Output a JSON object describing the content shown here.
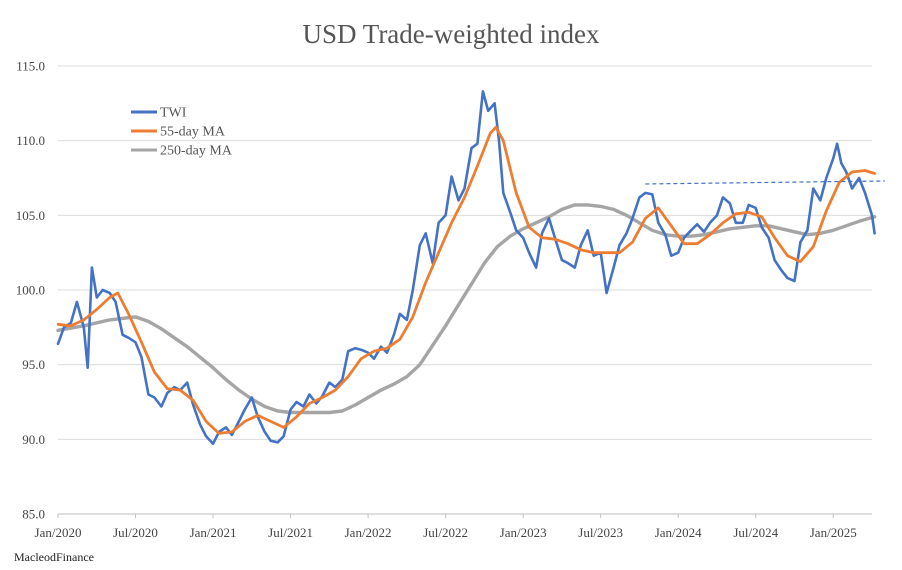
{
  "chart_data": {
    "type": "line",
    "title": "USD Trade-weighted index",
    "source_label": "MacleodFinance",
    "xlabel": "",
    "ylabel": "",
    "ylim": [
      85,
      115
    ],
    "y_ticks": [
      85.0,
      90.0,
      95.0,
      100.0,
      105.0,
      110.0,
      115.0
    ],
    "y_tick_labels": [
      "85.0",
      "90.0",
      "95.0",
      "100.0",
      "105.0",
      "110.0",
      "115.0"
    ],
    "x_range": [
      "2020-01",
      "2025-04"
    ],
    "x_ticks": [
      "2020-01",
      "2020-07",
      "2021-01",
      "2021-07",
      "2022-01",
      "2022-07",
      "2023-01",
      "2023-07",
      "2024-01",
      "2024-07",
      "2025-01"
    ],
    "x_tick_labels": [
      "Jan/2020",
      "Jul/2020",
      "Jan/2021",
      "Jul/2021",
      "Jan/2022",
      "Jul/2022",
      "Jan/2023",
      "Jul/2023",
      "Jan/2024",
      "Jul/2024",
      "Jan/2025"
    ],
    "grid": "horizontal",
    "legend_position": "top-left",
    "series": [
      {
        "name": "TWI",
        "color": "#4472c4",
        "points": [
          [
            "2020-01-01",
            96.4
          ],
          [
            "2020-01-15",
            97.5
          ],
          [
            "2020-02-01",
            97.8
          ],
          [
            "2020-02-15",
            99.2
          ],
          [
            "2020-03-01",
            97.5
          ],
          [
            "2020-03-10",
            94.8
          ],
          [
            "2020-03-20",
            101.5
          ],
          [
            "2020-04-01",
            99.5
          ],
          [
            "2020-04-15",
            100.0
          ],
          [
            "2020-05-01",
            99.8
          ],
          [
            "2020-05-15",
            99.2
          ],
          [
            "2020-06-01",
            97.0
          ],
          [
            "2020-06-15",
            96.8
          ],
          [
            "2020-07-01",
            96.5
          ],
          [
            "2020-07-15",
            95.5
          ],
          [
            "2020-08-01",
            93.0
          ],
          [
            "2020-08-15",
            92.8
          ],
          [
            "2020-09-01",
            92.2
          ],
          [
            "2020-09-15",
            93.1
          ],
          [
            "2020-10-01",
            93.5
          ],
          [
            "2020-10-15",
            93.3
          ],
          [
            "2020-11-01",
            93.8
          ],
          [
            "2020-11-15",
            92.3
          ],
          [
            "2020-12-01",
            91.0
          ],
          [
            "2020-12-15",
            90.2
          ],
          [
            "2021-01-01",
            89.7
          ],
          [
            "2021-01-15",
            90.5
          ],
          [
            "2021-02-01",
            90.8
          ],
          [
            "2021-02-15",
            90.3
          ],
          [
            "2021-03-01",
            91.2
          ],
          [
            "2021-03-15",
            92.0
          ],
          [
            "2021-04-01",
            92.8
          ],
          [
            "2021-04-15",
            91.5
          ],
          [
            "2021-05-01",
            90.5
          ],
          [
            "2021-05-15",
            89.9
          ],
          [
            "2021-06-01",
            89.8
          ],
          [
            "2021-06-15",
            90.2
          ],
          [
            "2021-07-01",
            92.0
          ],
          [
            "2021-07-15",
            92.5
          ],
          [
            "2021-08-01",
            92.2
          ],
          [
            "2021-08-15",
            93.0
          ],
          [
            "2021-09-01",
            92.4
          ],
          [
            "2021-09-15",
            92.9
          ],
          [
            "2021-10-01",
            93.8
          ],
          [
            "2021-10-15",
            93.5
          ],
          [
            "2021-11-01",
            94.0
          ],
          [
            "2021-11-15",
            95.9
          ],
          [
            "2021-12-01",
            96.1
          ],
          [
            "2021-12-15",
            96.0
          ],
          [
            "2022-01-01",
            95.8
          ],
          [
            "2022-01-15",
            95.4
          ],
          [
            "2022-02-01",
            96.2
          ],
          [
            "2022-02-15",
            95.8
          ],
          [
            "2022-03-01",
            97.0
          ],
          [
            "2022-03-15",
            98.4
          ],
          [
            "2022-04-01",
            98.0
          ],
          [
            "2022-04-15",
            100.0
          ],
          [
            "2022-05-01",
            103.0
          ],
          [
            "2022-05-15",
            103.8
          ],
          [
            "2022-06-01",
            101.8
          ],
          [
            "2022-06-15",
            104.5
          ],
          [
            "2022-07-01",
            105.0
          ],
          [
            "2022-07-15",
            107.6
          ],
          [
            "2022-08-01",
            106.0
          ],
          [
            "2022-08-15",
            106.8
          ],
          [
            "2022-09-01",
            109.5
          ],
          [
            "2022-09-15",
            109.8
          ],
          [
            "2022-09-28",
            113.3
          ],
          [
            "2022-10-10",
            112.0
          ],
          [
            "2022-10-25",
            112.5
          ],
          [
            "2022-11-05",
            110.0
          ],
          [
            "2022-11-15",
            106.5
          ],
          [
            "2022-12-01",
            105.2
          ],
          [
            "2022-12-15",
            104.0
          ],
          [
            "2023-01-01",
            103.5
          ],
          [
            "2023-01-15",
            102.5
          ],
          [
            "2023-02-01",
            101.5
          ],
          [
            "2023-02-15",
            103.8
          ],
          [
            "2023-03-01",
            104.8
          ],
          [
            "2023-03-15",
            103.5
          ],
          [
            "2023-04-01",
            102.0
          ],
          [
            "2023-04-15",
            101.8
          ],
          [
            "2023-05-01",
            101.5
          ],
          [
            "2023-05-15",
            103.0
          ],
          [
            "2023-06-01",
            104.0
          ],
          [
            "2023-06-15",
            102.3
          ],
          [
            "2023-07-01",
            102.5
          ],
          [
            "2023-07-15",
            99.8
          ],
          [
            "2023-08-01",
            101.5
          ],
          [
            "2023-08-15",
            103.0
          ],
          [
            "2023-09-01",
            103.8
          ],
          [
            "2023-09-15",
            104.8
          ],
          [
            "2023-10-01",
            106.2
          ],
          [
            "2023-10-15",
            106.5
          ],
          [
            "2023-11-01",
            106.4
          ],
          [
            "2023-11-15",
            104.5
          ],
          [
            "2023-12-01",
            103.7
          ],
          [
            "2023-12-15",
            102.3
          ],
          [
            "2024-01-01",
            102.5
          ],
          [
            "2024-01-15",
            103.5
          ],
          [
            "2024-02-01",
            104.0
          ],
          [
            "2024-02-15",
            104.4
          ],
          [
            "2024-03-01",
            103.9
          ],
          [
            "2024-03-15",
            104.5
          ],
          [
            "2024-04-01",
            105.0
          ],
          [
            "2024-04-15",
            106.2
          ],
          [
            "2024-05-01",
            105.8
          ],
          [
            "2024-05-15",
            104.5
          ],
          [
            "2024-06-01",
            104.5
          ],
          [
            "2024-06-15",
            105.7
          ],
          [
            "2024-07-01",
            105.5
          ],
          [
            "2024-07-15",
            104.2
          ],
          [
            "2024-08-01",
            103.5
          ],
          [
            "2024-08-15",
            102.0
          ],
          [
            "2024-09-01",
            101.3
          ],
          [
            "2024-09-15",
            100.8
          ],
          [
            "2024-10-01",
            100.6
          ],
          [
            "2024-10-15",
            103.2
          ],
          [
            "2024-11-01",
            104.0
          ],
          [
            "2024-11-15",
            106.8
          ],
          [
            "2024-12-01",
            106.0
          ],
          [
            "2024-12-15",
            107.5
          ],
          [
            "2025-01-01",
            108.8
          ],
          [
            "2025-01-10",
            109.8
          ],
          [
            "2025-01-20",
            108.5
          ],
          [
            "2025-02-01",
            107.9
          ],
          [
            "2025-02-15",
            106.8
          ],
          [
            "2025-03-01",
            107.5
          ],
          [
            "2025-03-15",
            106.5
          ],
          [
            "2025-04-01",
            105.0
          ],
          [
            "2025-04-07",
            103.8
          ]
        ]
      },
      {
        "name": "55-day MA",
        "color": "#ed7d31",
        "points": [
          [
            "2020-01-01",
            97.7
          ],
          [
            "2020-02-01",
            97.6
          ],
          [
            "2020-03-01",
            98.0
          ],
          [
            "2020-04-01",
            98.7
          ],
          [
            "2020-05-01",
            99.5
          ],
          [
            "2020-05-20",
            99.8
          ],
          [
            "2020-06-15",
            98.4
          ],
          [
            "2020-07-15",
            96.5
          ],
          [
            "2020-08-15",
            94.5
          ],
          [
            "2020-09-15",
            93.4
          ],
          [
            "2020-10-15",
            93.3
          ],
          [
            "2020-11-15",
            92.6
          ],
          [
            "2020-12-15",
            91.2
          ],
          [
            "2021-01-15",
            90.4
          ],
          [
            "2021-02-15",
            90.5
          ],
          [
            "2021-03-15",
            91.2
          ],
          [
            "2021-04-15",
            91.6
          ],
          [
            "2021-05-15",
            91.2
          ],
          [
            "2021-06-15",
            90.8
          ],
          [
            "2021-07-15",
            91.5
          ],
          [
            "2021-08-15",
            92.4
          ],
          [
            "2021-09-15",
            92.8
          ],
          [
            "2021-10-15",
            93.3
          ],
          [
            "2021-11-15",
            94.2
          ],
          [
            "2021-12-15",
            95.4
          ],
          [
            "2022-01-15",
            95.9
          ],
          [
            "2022-02-15",
            96.1
          ],
          [
            "2022-03-15",
            96.7
          ],
          [
            "2022-04-15",
            98.2
          ],
          [
            "2022-05-15",
            100.5
          ],
          [
            "2022-06-15",
            102.5
          ],
          [
            "2022-07-15",
            104.5
          ],
          [
            "2022-08-15",
            106.2
          ],
          [
            "2022-09-15",
            108.3
          ],
          [
            "2022-10-15",
            110.5
          ],
          [
            "2022-10-28",
            110.9
          ],
          [
            "2022-11-15",
            110.0
          ],
          [
            "2022-12-15",
            106.5
          ],
          [
            "2023-01-15",
            104.2
          ],
          [
            "2023-02-15",
            103.5
          ],
          [
            "2023-03-15",
            103.4
          ],
          [
            "2023-04-15",
            103.1
          ],
          [
            "2023-05-15",
            102.7
          ],
          [
            "2023-06-15",
            102.5
          ],
          [
            "2023-07-15",
            102.5
          ],
          [
            "2023-08-15",
            102.5
          ],
          [
            "2023-09-15",
            103.2
          ],
          [
            "2023-10-15",
            104.8
          ],
          [
            "2023-11-15",
            105.5
          ],
          [
            "2023-12-15",
            104.3
          ],
          [
            "2024-01-15",
            103.1
          ],
          [
            "2024-02-15",
            103.1
          ],
          [
            "2024-03-15",
            103.7
          ],
          [
            "2024-04-15",
            104.5
          ],
          [
            "2024-05-15",
            105.1
          ],
          [
            "2024-06-15",
            105.2
          ],
          [
            "2024-07-15",
            104.9
          ],
          [
            "2024-08-15",
            103.5
          ],
          [
            "2024-09-15",
            102.3
          ],
          [
            "2024-10-15",
            101.9
          ],
          [
            "2024-11-15",
            102.9
          ],
          [
            "2024-12-15",
            105.3
          ],
          [
            "2025-01-15",
            107.2
          ],
          [
            "2025-02-15",
            107.9
          ],
          [
            "2025-03-15",
            108.0
          ],
          [
            "2025-04-07",
            107.8
          ]
        ]
      },
      {
        "name": "250-day MA",
        "color": "#a5a5a5",
        "points": [
          [
            "2020-01-01",
            97.3
          ],
          [
            "2020-03-01",
            97.6
          ],
          [
            "2020-05-01",
            98.0
          ],
          [
            "2020-07-01",
            98.2
          ],
          [
            "2020-08-01",
            97.9
          ],
          [
            "2020-09-01",
            97.4
          ],
          [
            "2020-10-01",
            96.8
          ],
          [
            "2020-11-01",
            96.2
          ],
          [
            "2020-12-01",
            95.5
          ],
          [
            "2021-01-01",
            94.8
          ],
          [
            "2021-02-01",
            94.0
          ],
          [
            "2021-03-01",
            93.3
          ],
          [
            "2021-04-01",
            92.7
          ],
          [
            "2021-05-01",
            92.2
          ],
          [
            "2021-06-01",
            91.9
          ],
          [
            "2021-07-01",
            91.8
          ],
          [
            "2021-08-01",
            91.8
          ],
          [
            "2021-09-01",
            91.8
          ],
          [
            "2021-10-01",
            91.8
          ],
          [
            "2021-11-01",
            91.9
          ],
          [
            "2021-12-01",
            92.3
          ],
          [
            "2022-01-01",
            92.8
          ],
          [
            "2022-02-01",
            93.3
          ],
          [
            "2022-03-01",
            93.7
          ],
          [
            "2022-04-01",
            94.2
          ],
          [
            "2022-05-01",
            95.0
          ],
          [
            "2022-06-01",
            96.3
          ],
          [
            "2022-07-01",
            97.6
          ],
          [
            "2022-08-01",
            99.0
          ],
          [
            "2022-09-01",
            100.4
          ],
          [
            "2022-10-01",
            101.8
          ],
          [
            "2022-11-01",
            102.9
          ],
          [
            "2022-12-01",
            103.6
          ],
          [
            "2023-01-01",
            104.1
          ],
          [
            "2023-02-01",
            104.5
          ],
          [
            "2023-03-01",
            104.9
          ],
          [
            "2023-04-01",
            105.4
          ],
          [
            "2023-05-01",
            105.7
          ],
          [
            "2023-06-01",
            105.7
          ],
          [
            "2023-07-01",
            105.6
          ],
          [
            "2023-08-01",
            105.4
          ],
          [
            "2023-09-01",
            105.0
          ],
          [
            "2023-10-01",
            104.5
          ],
          [
            "2023-11-01",
            104.0
          ],
          [
            "2023-12-01",
            103.7
          ],
          [
            "2024-01-01",
            103.6
          ],
          [
            "2024-02-01",
            103.6
          ],
          [
            "2024-03-01",
            103.7
          ],
          [
            "2024-04-01",
            103.9
          ],
          [
            "2024-05-01",
            104.1
          ],
          [
            "2024-06-01",
            104.2
          ],
          [
            "2024-07-01",
            104.3
          ],
          [
            "2024-08-01",
            104.3
          ],
          [
            "2024-09-01",
            104.1
          ],
          [
            "2024-10-01",
            103.9
          ],
          [
            "2024-11-01",
            103.7
          ],
          [
            "2024-12-01",
            103.8
          ],
          [
            "2025-01-01",
            104.0
          ],
          [
            "2025-02-01",
            104.3
          ],
          [
            "2025-03-01",
            104.6
          ],
          [
            "2025-04-07",
            104.9
          ]
        ]
      }
    ],
    "annotations": [
      {
        "type": "dashed-trendline",
        "color": "#4472c4",
        "points": [
          [
            "2023-10-15",
            107.1
          ],
          [
            "2025-05-01",
            107.3
          ]
        ]
      }
    ]
  }
}
